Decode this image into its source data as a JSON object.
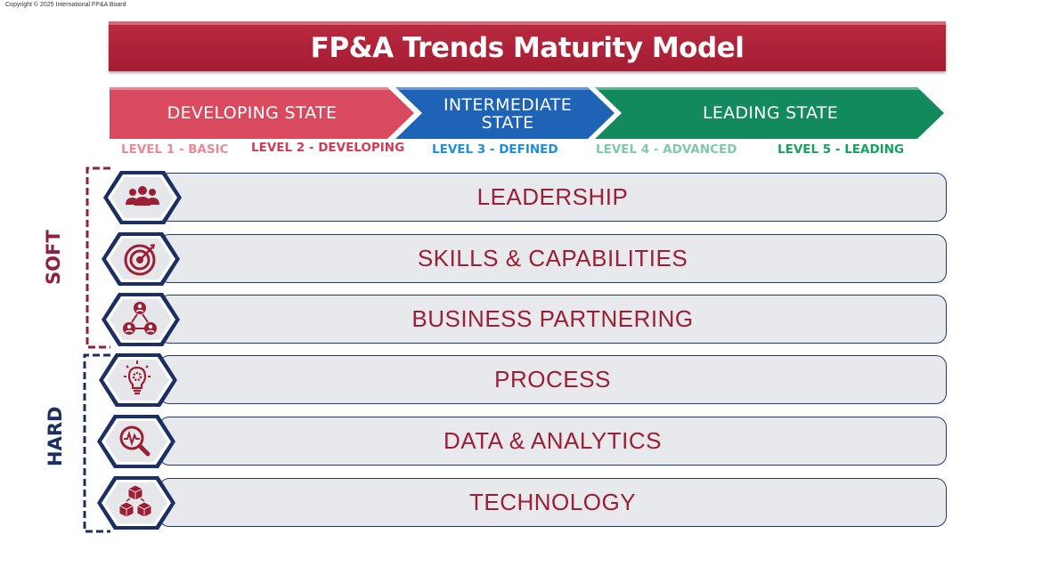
{
  "copyright": "Copyright © 2025 International FP&A Board",
  "title": "FP&A Trends Maturity Model",
  "states": [
    {
      "label_lines": [
        "DEVELOPING STATE"
      ],
      "color": "#d94a5e"
    },
    {
      "label_lines": [
        "INTERMEDIATE",
        "STATE"
      ],
      "color": "#1e63b5"
    },
    {
      "label_lines": [
        "LEADING STATE"
      ],
      "color": "#138a5e"
    }
  ],
  "levels": [
    {
      "label": "LEVEL 1 - BASIC",
      "color": "#e88a96"
    },
    {
      "label": "LEVEL 2 - DEVELOPING",
      "color": "#d23a55"
    },
    {
      "label": "LEVEL 3 - DEFINED",
      "color": "#1e8fd6"
    },
    {
      "label": "LEVEL 4 - ADVANCED",
      "color": "#7fc8a8"
    },
    {
      "label": "LEVEL 5 - LEADING",
      "color": "#17a05f"
    }
  ],
  "groups": {
    "soft": {
      "label": "SOFT",
      "color": "#8c2240"
    },
    "hard": {
      "label": "HARD",
      "color": "#1c2f63"
    }
  },
  "dimensions": [
    {
      "label": "LEADERSHIP",
      "icon": "team-icon"
    },
    {
      "label": "SKILLS & CAPABILITIES",
      "icon": "target-icon"
    },
    {
      "label": "BUSINESS PARTNERING",
      "icon": "network-people-icon"
    },
    {
      "label": "PROCESS",
      "icon": "lightbulb-gear-icon"
    },
    {
      "label": "DATA & ANALYTICS",
      "icon": "magnifier-chart-icon"
    },
    {
      "label": "TECHNOLOGY",
      "icon": "cubes-icon"
    }
  ]
}
